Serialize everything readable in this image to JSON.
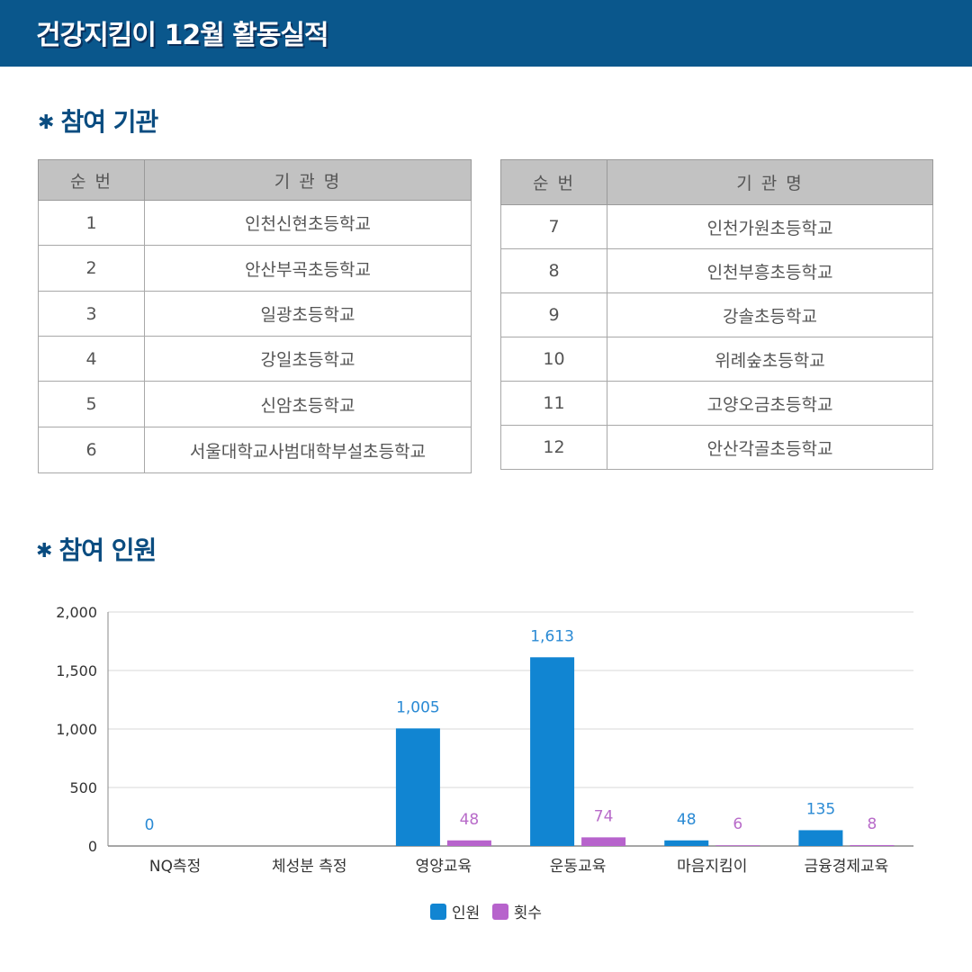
{
  "header": {
    "title": "건강지킴이 12월 활동실적"
  },
  "sections": {
    "institutions": "참여 기관",
    "participants": "참여 인원",
    "bullet": "✱"
  },
  "tables": [
    {
      "headers": [
        "순 번",
        "기 관 명"
      ],
      "rows": [
        {
          "no": "1",
          "name": "인천신현초등학교"
        },
        {
          "no": "2",
          "name": "안산부곡초등학교"
        },
        {
          "no": "3",
          "name": "일광초등학교"
        },
        {
          "no": "4",
          "name": "강일초등학교"
        },
        {
          "no": "5",
          "name": "신암초등학교"
        },
        {
          "no": "6",
          "name": "서울대학교사범대학부설초등학교"
        }
      ]
    },
    {
      "headers": [
        "순 번",
        "기 관 명"
      ],
      "rows": [
        {
          "no": "7",
          "name": "인천가원초등학교"
        },
        {
          "no": "8",
          "name": "인천부흥초등학교"
        },
        {
          "no": "9",
          "name": "강솔초등학교"
        },
        {
          "no": "10",
          "name": "위례숲초등학교"
        },
        {
          "no": "11",
          "name": "고양오금초등학교"
        },
        {
          "no": "12",
          "name": "안산각골초등학교"
        }
      ]
    }
  ],
  "chart_data": {
    "type": "bar",
    "title": "",
    "xlabel": "",
    "ylabel": "",
    "categories": [
      "NQ측정",
      "체성분 측정",
      "영양교육",
      "운동교육",
      "마음지킴이",
      "금융경제교육"
    ],
    "series": [
      {
        "name": "인원",
        "color": "#1185d2",
        "label_color": "#2a8ad4",
        "values": [
          0,
          null,
          1005,
          1613,
          48,
          135
        ],
        "labels": [
          "0",
          "",
          "1,005",
          "1,613",
          "48",
          "135"
        ]
      },
      {
        "name": "횟수",
        "color": "#b763cc",
        "label_color": "#b86bc9",
        "values": [
          null,
          null,
          48,
          74,
          6,
          8
        ],
        "labels": [
          "",
          "",
          "48",
          "74",
          "6",
          "8"
        ]
      }
    ],
    "ylim": [
      0,
      2000
    ],
    "yticks": [
      0,
      500,
      1000,
      1500,
      2000
    ],
    "ytick_labels": [
      "0",
      "500",
      "1,000",
      "1,500",
      "2,000"
    ],
    "grid": true,
    "legend_position": "bottom-center"
  }
}
